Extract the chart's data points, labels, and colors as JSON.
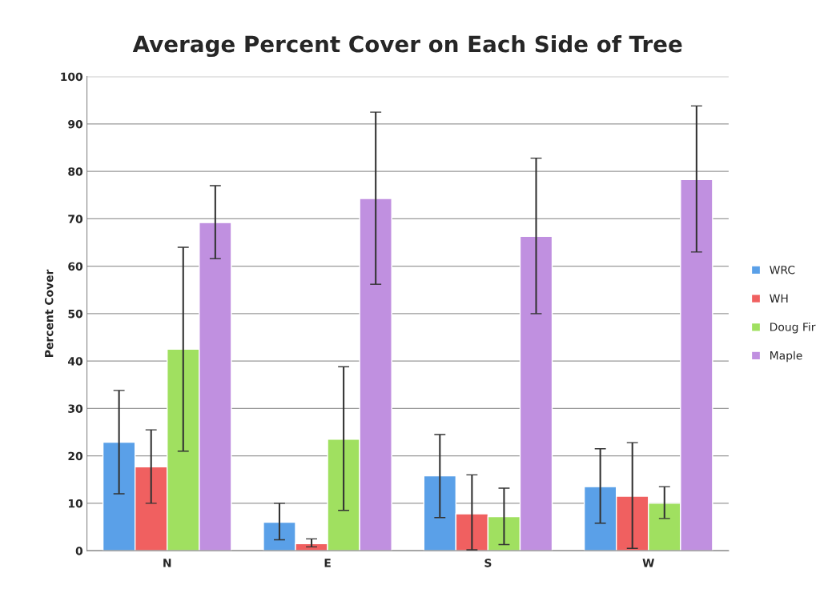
{
  "chart_data": {
    "type": "bar",
    "title": "Average Percent Cover on Each Side of Tree",
    "ylabel": "Percent Cover",
    "categories": [
      "N",
      "E",
      "S",
      "W"
    ],
    "series": [
      {
        "name": "WRC",
        "color": "#5aa0e8",
        "values": [
          22.9,
          6,
          15.8,
          13.5
        ],
        "errors": [
          [
            12,
            33.8
          ],
          [
            2.3,
            10
          ],
          [
            7,
            24.5
          ],
          [
            5.8,
            21.5
          ]
        ]
      },
      {
        "name": "WH",
        "color": "#f06060",
        "values": [
          17.7,
          1.5,
          7.8,
          11.5
        ],
        "errors": [
          [
            10,
            25.5
          ],
          [
            0.8,
            2.5
          ],
          [
            0.2,
            16
          ],
          [
            0.5,
            22.8
          ]
        ]
      },
      {
        "name": "Doug Fir",
        "color": "#a0e060",
        "values": [
          42.5,
          23.5,
          7.2,
          10
        ],
        "errors": [
          [
            21,
            64
          ],
          [
            8.5,
            38.8
          ],
          [
            1.3,
            13.2
          ],
          [
            6.8,
            13.5
          ]
        ]
      },
      {
        "name": "Maple",
        "color": "#c090e0",
        "values": [
          69.2,
          74.3,
          66.3,
          78.3
        ],
        "errors": [
          [
            61.6,
            77
          ],
          [
            56.2,
            92.5
          ],
          [
            50,
            82.8
          ],
          [
            63,
            93.8
          ]
        ]
      }
    ],
    "ylim": [
      0,
      100
    ],
    "yticks": [
      0,
      10,
      20,
      30,
      40,
      50,
      60,
      70,
      80,
      90,
      100
    ],
    "grid": "y",
    "legend": "right"
  }
}
